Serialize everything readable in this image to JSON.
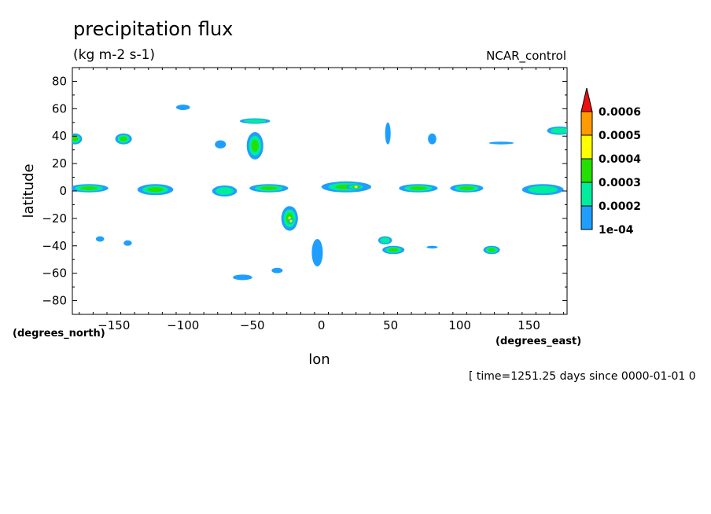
{
  "chart_data": {
    "type": "heatmap",
    "title": "precipitation flux",
    "subtitle": "(kg m-2 s-1)",
    "run_label": "NCAR_control",
    "xlabel": "lon",
    "ylabel": "latitude",
    "x_units": "(degrees_east)",
    "y_units": "(degrees_north)",
    "xlim": [
      -180,
      177.5
    ],
    "ylim": [
      -90,
      90
    ],
    "x_ticks": [
      -150,
      -100,
      -50,
      0,
      50,
      100,
      150
    ],
    "y_ticks": [
      80,
      60,
      40,
      20,
      0,
      -20,
      -40,
      -60,
      -80
    ],
    "grid": false,
    "time_note": "[ time=1251.25 days since 0000-01-01 0",
    "levels": [
      0.0001,
      0.0002,
      0.0003,
      0.0004,
      0.0005,
      0.0006
    ],
    "level_labels": [
      "1e-04",
      "0.0002",
      "0.0003",
      "0.0004",
      "0.0005",
      "0.0006"
    ],
    "colors": [
      "#1e9fff",
      "#00ec9e",
      "#24e000",
      "#ffff00",
      "#ff9a00",
      "#ee0f0f"
    ],
    "features": [
      {
        "name": "nw-pacific-storm",
        "x": -178,
        "y": 38,
        "rx": 5,
        "ry": 4,
        "level": 2
      },
      {
        "name": "n-pacific-cell",
        "x": -143,
        "y": 38,
        "rx": 6,
        "ry": 4,
        "level": 2
      },
      {
        "name": "greenland-cell",
        "x": -100,
        "y": 61,
        "rx": 5,
        "ry": 2,
        "level": 0
      },
      {
        "name": "n-america-cell",
        "x": -73,
        "y": 34,
        "rx": 4,
        "ry": 3,
        "level": 0
      },
      {
        "name": "n-atlantic-band",
        "x": -48,
        "y": 51,
        "rx": 11,
        "ry": 2,
        "level": 1
      },
      {
        "name": "n-atlantic-storm",
        "x": -48,
        "y": 33,
        "rx": 6,
        "ry": 10,
        "level": 2
      },
      {
        "name": "europe-streak",
        "x": 48,
        "y": 42,
        "rx": 2,
        "ry": 8,
        "level": 0
      },
      {
        "name": "asia-cell",
        "x": 80,
        "y": 38,
        "rx": 3,
        "ry": 4,
        "level": 0
      },
      {
        "name": "n-pacific-east",
        "x": 172,
        "y": 44,
        "rx": 9,
        "ry": 3,
        "level": 1
      },
      {
        "name": "w-pacific-itcz",
        "x": -168,
        "y": 2,
        "rx": 14,
        "ry": 3,
        "level": 2
      },
      {
        "name": "c-pacific-itcz",
        "x": -120,
        "y": 1,
        "rx": 13,
        "ry": 4,
        "level": 2
      },
      {
        "name": "e-pacific-itcz",
        "x": -70,
        "y": 0,
        "rx": 9,
        "ry": 4,
        "level": 1
      },
      {
        "name": "atlantic-itcz",
        "x": -38,
        "y": 2,
        "rx": 14,
        "ry": 3,
        "level": 2
      },
      {
        "name": "africa-itcz",
        "x": 18,
        "y": 3,
        "rx": 18,
        "ry": 4,
        "level": 2
      },
      {
        "name": "africa-core",
        "x": 25,
        "y": 3,
        "rx": 7,
        "ry": 2,
        "level": 3
      },
      {
        "name": "indian-itcz",
        "x": 70,
        "y": 2,
        "rx": 14,
        "ry": 3,
        "level": 2
      },
      {
        "name": "indonesia-itcz",
        "x": 105,
        "y": 2,
        "rx": 12,
        "ry": 3,
        "level": 2
      },
      {
        "name": "w-pacific-east-itcz",
        "x": 160,
        "y": 1,
        "rx": 15,
        "ry": 4,
        "level": 1
      },
      {
        "name": "s-atlantic-convergence",
        "x": -23,
        "y": -20,
        "rx": 6,
        "ry": 9,
        "level": 3
      },
      {
        "name": "s-atlantic-core",
        "x": -22,
        "y": -22,
        "rx": 2,
        "ry": 2,
        "level": 4
      },
      {
        "name": "s-indian-convergence",
        "x": 52,
        "y": -43,
        "rx": 8,
        "ry": 3,
        "level": 2
      },
      {
        "name": "s-indian-band",
        "x": 46,
        "y": -36,
        "rx": 5,
        "ry": 3,
        "level": 1
      },
      {
        "name": "s-pacific-cell",
        "x": 123,
        "y": -43,
        "rx": 6,
        "ry": 3,
        "level": 2
      },
      {
        "name": "southern-streak",
        "x": -3,
        "y": -45,
        "rx": 4,
        "ry": 10,
        "level": 0
      },
      {
        "name": "southern-cell",
        "x": -57,
        "y": -63,
        "rx": 7,
        "ry": 2,
        "level": 0
      },
      {
        "name": "southern-cell-2",
        "x": -32,
        "y": -58,
        "rx": 4,
        "ry": 2,
        "level": 0
      },
      {
        "name": "southern-cell-3",
        "x": -160,
        "y": -35,
        "rx": 3,
        "ry": 2,
        "level": 0
      },
      {
        "name": "southern-cell-4",
        "x": -140,
        "y": -38,
        "rx": 3,
        "ry": 2,
        "level": 0
      },
      {
        "name": "southern-cell-5",
        "x": 80,
        "y": -41,
        "rx": 4,
        "ry": 1,
        "level": 0
      },
      {
        "name": "n-pacific-streak",
        "x": 130,
        "y": 35,
        "rx": 9,
        "ry": 1,
        "level": 0
      }
    ]
  }
}
